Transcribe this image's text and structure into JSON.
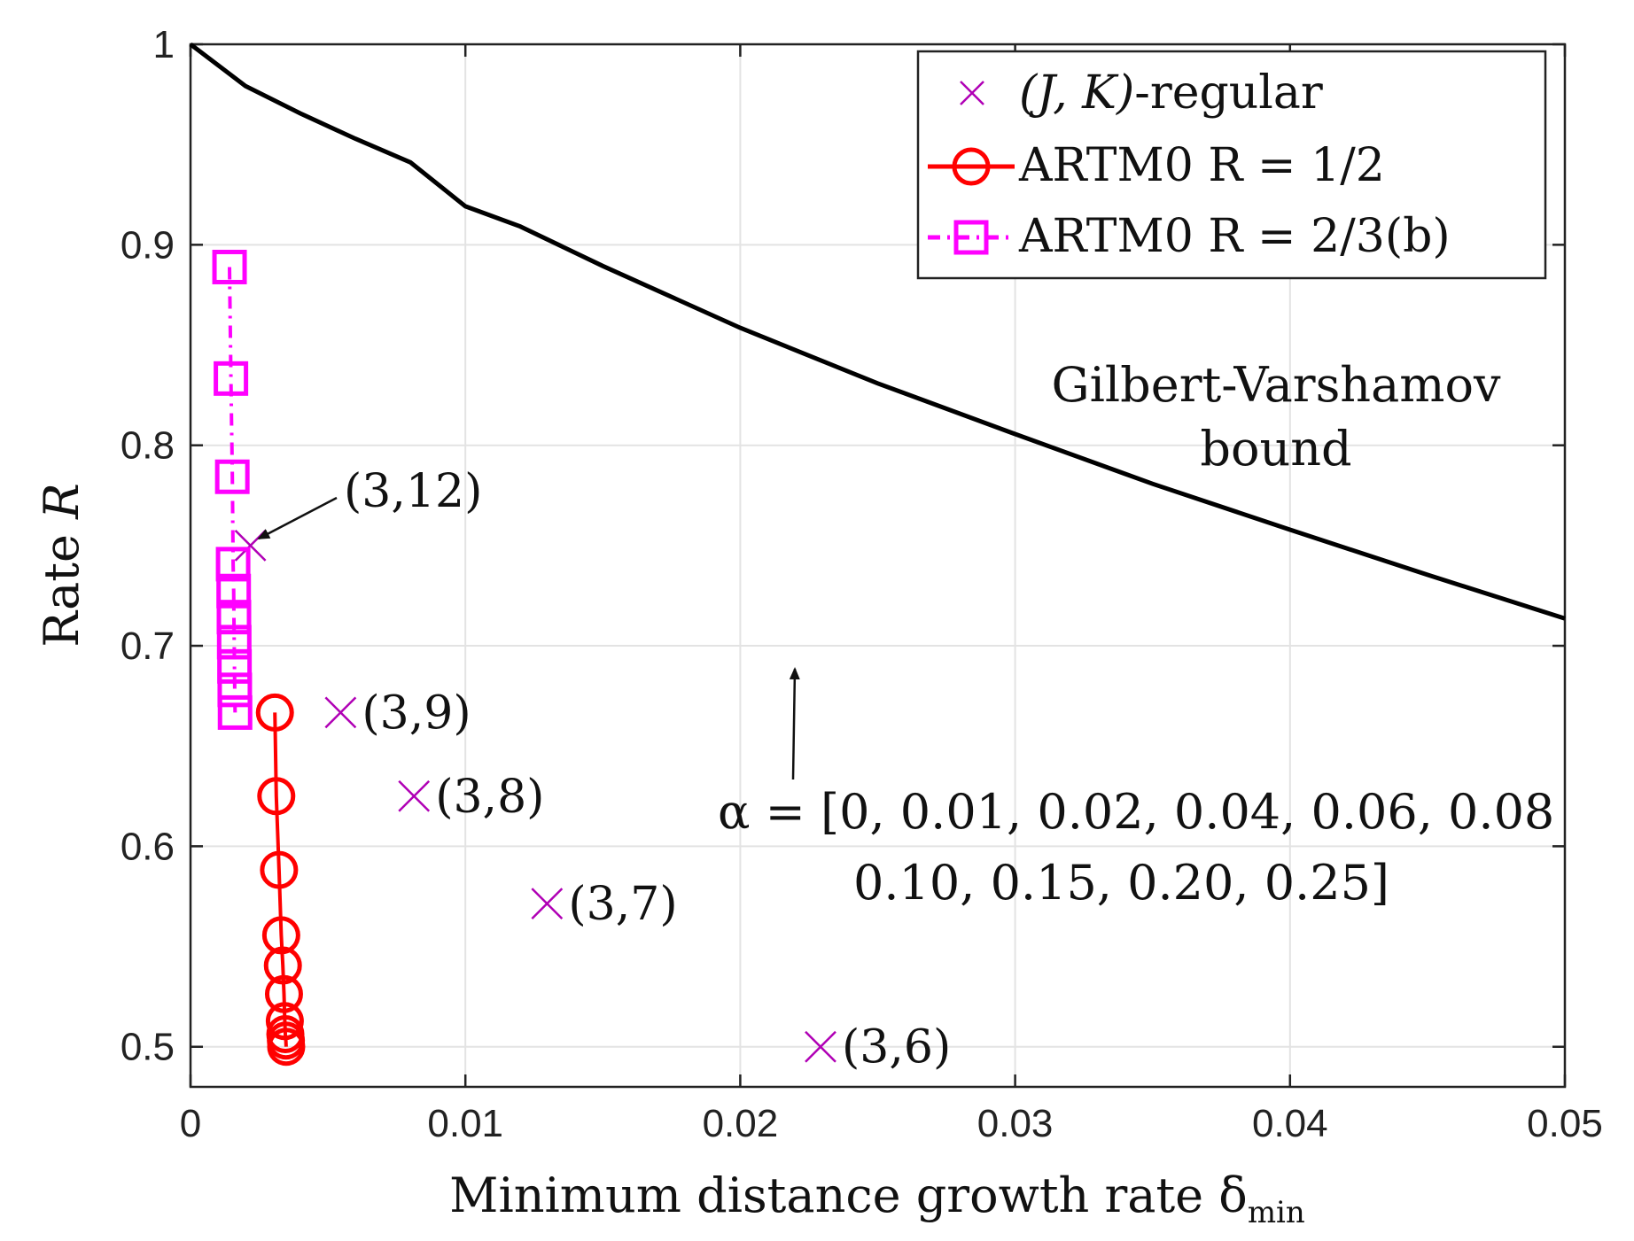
{
  "chart_data": {
    "type": "line",
    "title": "",
    "xlabel": "Minimum distance growth rate δ",
    "xlabel_sub": "min",
    "ylabel_text": "Rate ",
    "ylabel_var": "R",
    "xlim": [
      0,
      0.05
    ],
    "ylim": [
      0.48,
      1.0
    ],
    "grid": true,
    "x_ticks": [
      0,
      0.01,
      0.02,
      0.03,
      0.04,
      0.05
    ],
    "x_tick_labels": [
      "0",
      "0.01",
      "0.02",
      "0.03",
      "0.04",
      "0.05"
    ],
    "y_ticks": [
      0.5,
      0.6,
      0.7,
      0.8,
      0.9,
      1.0
    ],
    "y_tick_labels": [
      "0.5",
      "0.6",
      "0.7",
      "0.8",
      "0.9",
      "1"
    ],
    "legend_position": "top-right",
    "series": [
      {
        "name": "(J, K)-regular",
        "style": "markers-x",
        "color": "#b000b5",
        "points": [
          {
            "x": 0.00218,
            "y": 0.75,
            "label": "(3,12)"
          },
          {
            "x": 0.00546,
            "y": 0.6667,
            "label": "(3,9)"
          },
          {
            "x": 0.00813,
            "y": 0.625,
            "label": "(3,8)"
          },
          {
            "x": 0.01297,
            "y": 0.5714,
            "label": "(3,7)"
          },
          {
            "x": 0.02292,
            "y": 0.5,
            "label": "(3,6)"
          }
        ]
      },
      {
        "name": "ARTM0 R = 1/2",
        "style": "line-circles",
        "color": "#ff0000",
        "points": [
          {
            "x": 0.00307,
            "y": 0.6667
          },
          {
            "x": 0.00312,
            "y": 0.625
          },
          {
            "x": 0.00322,
            "y": 0.5882
          },
          {
            "x": 0.0033,
            "y": 0.5556
          },
          {
            "x": 0.00336,
            "y": 0.5405
          },
          {
            "x": 0.0034,
            "y": 0.5263
          },
          {
            "x": 0.00343,
            "y": 0.5128
          },
          {
            "x": 0.00345,
            "y": 0.5063
          },
          {
            "x": 0.00347,
            "y": 0.5031
          },
          {
            "x": 0.00348,
            "y": 0.5
          }
        ]
      },
      {
        "name": "ARTM0 R = 2/3(b)",
        "style": "dashdot-squares",
        "color": "#ff00ff",
        "points": [
          {
            "x": 0.00142,
            "y": 0.8889
          },
          {
            "x": 0.00147,
            "y": 0.8333
          },
          {
            "x": 0.00152,
            "y": 0.7843
          },
          {
            "x": 0.00155,
            "y": 0.7407
          },
          {
            "x": 0.00157,
            "y": 0.7273
          },
          {
            "x": 0.00158,
            "y": 0.7143
          },
          {
            "x": 0.00159,
            "y": 0.7018
          },
          {
            "x": 0.0016,
            "y": 0.6897
          },
          {
            "x": 0.00161,
            "y": 0.678
          },
          {
            "x": 0.00162,
            "y": 0.6667
          }
        ]
      },
      {
        "name": "Gilbert-Varshamov bound",
        "style": "line",
        "color": "#000000",
        "points": [
          {
            "x": 0.0,
            "y": 1.0
          },
          {
            "x": 0.002,
            "y": 0.9792
          },
          {
            "x": 0.004,
            "y": 0.9655
          },
          {
            "x": 0.006,
            "y": 0.9529
          },
          {
            "x": 0.008,
            "y": 0.9411
          },
          {
            "x": 0.01,
            "y": 0.9192
          },
          {
            "x": 0.012,
            "y": 0.9091
          },
          {
            "x": 0.015,
            "y": 0.8894
          },
          {
            "x": 0.02,
            "y": 0.8586
          },
          {
            "x": 0.025,
            "y": 0.8309
          },
          {
            "x": 0.03,
            "y": 0.8056
          },
          {
            "x": 0.035,
            "y": 0.7808
          },
          {
            "x": 0.04,
            "y": 0.7579
          },
          {
            "x": 0.045,
            "y": 0.7354
          },
          {
            "x": 0.05,
            "y": 0.7136
          }
        ]
      }
    ],
    "legend": [
      {
        "prefix": "(J, K)",
        "text": "-regular"
      },
      {
        "prefix": "ARTM0 ",
        "text": "R = 1/2"
      },
      {
        "prefix": "ARTM0 ",
        "text": "R = 2/3(b)"
      }
    ],
    "annotations": {
      "gv_line1": "Gilbert-Varshamov",
      "gv_line2": "bound",
      "alpha_line1": "α = [0, 0.01, 0.02, 0.04, 0.06, 0.08",
      "alpha_line2": "0.10, 0.15, 0.20, 0.25]"
    }
  }
}
